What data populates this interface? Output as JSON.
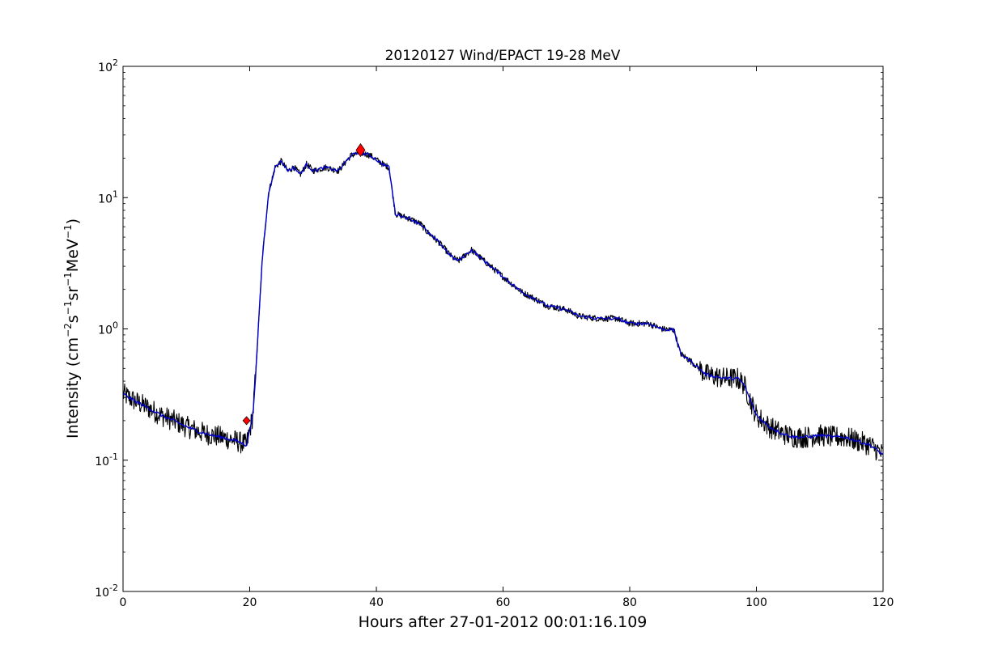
{
  "chart_data": {
    "type": "line",
    "title": "20120127 Wind/EPACT 19-28 MeV",
    "xlabel": "Hours after 27-01-2012 00:01:16.109",
    "ylabel": {
      "prefix": "Intensity (cm",
      "sup1": "−2",
      "mid1": "s",
      "sup2": "−1",
      "mid2": "sr",
      "sup3": "−1",
      "mid3": "MeV",
      "sup4": "−1",
      "suffix": ")"
    },
    "xlim": [
      0,
      120
    ],
    "ylim": [
      0.01,
      100
    ],
    "yscale": "log",
    "grid": false,
    "x_ticks": [
      0,
      20,
      40,
      60,
      80,
      100,
      120
    ],
    "x_tick_labels": [
      "0",
      "20",
      "40",
      "60",
      "80",
      "100",
      "120"
    ],
    "y_ticks": [
      {
        "value": 0.01,
        "base": "10",
        "exp": "-2"
      },
      {
        "value": 0.1,
        "base": "10",
        "exp": "-1"
      },
      {
        "value": 1,
        "base": "10",
        "exp": "0"
      },
      {
        "value": 10,
        "base": "10",
        "exp": "1"
      },
      {
        "value": 100,
        "base": "10",
        "exp": "2"
      }
    ],
    "series": [
      {
        "style": "raw",
        "color": "#000000",
        "x": [
          0,
          2,
          4,
          6,
          8,
          10,
          12,
          14,
          16,
          18,
          19.5,
          20.5,
          21,
          22,
          23,
          24,
          25,
          26,
          27,
          28,
          29,
          30,
          32,
          34,
          36,
          37.5,
          39,
          41,
          42,
          43,
          45,
          47,
          48,
          50,
          52,
          53,
          55,
          57,
          60,
          63,
          65,
          67,
          70,
          72,
          75,
          78,
          80,
          83,
          85,
          87,
          88,
          90,
          92,
          95,
          97,
          98,
          100,
          102,
          104,
          106,
          108,
          110,
          112,
          114,
          116,
          118,
          120
        ],
        "y": [
          0.32,
          0.28,
          0.25,
          0.22,
          0.2,
          0.18,
          0.165,
          0.155,
          0.148,
          0.14,
          0.13,
          0.22,
          0.5,
          3.5,
          11,
          17,
          19,
          16,
          17,
          15,
          18,
          16,
          17,
          16,
          21,
          22,
          21,
          18,
          17,
          7.5,
          7.0,
          6.3,
          5.5,
          4.5,
          3.5,
          3.3,
          4.0,
          3.3,
          2.5,
          1.9,
          1.7,
          1.5,
          1.4,
          1.25,
          1.2,
          1.2,
          1.1,
          1.1,
          1.0,
          0.98,
          0.65,
          0.55,
          0.45,
          0.42,
          0.42,
          0.38,
          0.22,
          0.18,
          0.16,
          0.15,
          0.15,
          0.155,
          0.15,
          0.15,
          0.14,
          0.13,
          0.11
        ],
        "noise": 0.07
      },
      {
        "style": "smoothed",
        "color": "#0000cc",
        "x": [
          0,
          2,
          4,
          6,
          8,
          10,
          12,
          14,
          16,
          18,
          19.5,
          20.5,
          21,
          22,
          23,
          24,
          25,
          26,
          27,
          28,
          29,
          30,
          32,
          34,
          36,
          37.5,
          39,
          41,
          42,
          43,
          45,
          47,
          48,
          50,
          52,
          53,
          55,
          57,
          60,
          63,
          65,
          67,
          70,
          72,
          75,
          78,
          80,
          83,
          85,
          87,
          88,
          90,
          92,
          95,
          97,
          98,
          100,
          102,
          104,
          106,
          108,
          110,
          112,
          114,
          116,
          118,
          120
        ],
        "y": [
          0.32,
          0.28,
          0.25,
          0.22,
          0.2,
          0.18,
          0.165,
          0.155,
          0.148,
          0.14,
          0.13,
          0.22,
          0.5,
          3.5,
          11,
          17,
          19,
          16,
          17,
          15,
          18,
          16,
          17,
          16,
          21,
          22,
          21,
          18,
          17,
          7.5,
          7.0,
          6.3,
          5.5,
          4.5,
          3.5,
          3.3,
          4.0,
          3.3,
          2.5,
          1.9,
          1.7,
          1.5,
          1.4,
          1.25,
          1.2,
          1.2,
          1.1,
          1.1,
          1.0,
          0.98,
          0.65,
          0.55,
          0.45,
          0.42,
          0.42,
          0.38,
          0.22,
          0.18,
          0.16,
          0.15,
          0.15,
          0.155,
          0.15,
          0.15,
          0.14,
          0.13,
          0.11
        ]
      }
    ],
    "markers": [
      {
        "name": "onset",
        "x": 19.5,
        "y": 0.2,
        "color": "#ff0000",
        "shape": "diamond"
      },
      {
        "name": "peak",
        "x": 37.5,
        "y": 23,
        "color": "#ff0000",
        "shape": "diamond"
      }
    ]
  }
}
